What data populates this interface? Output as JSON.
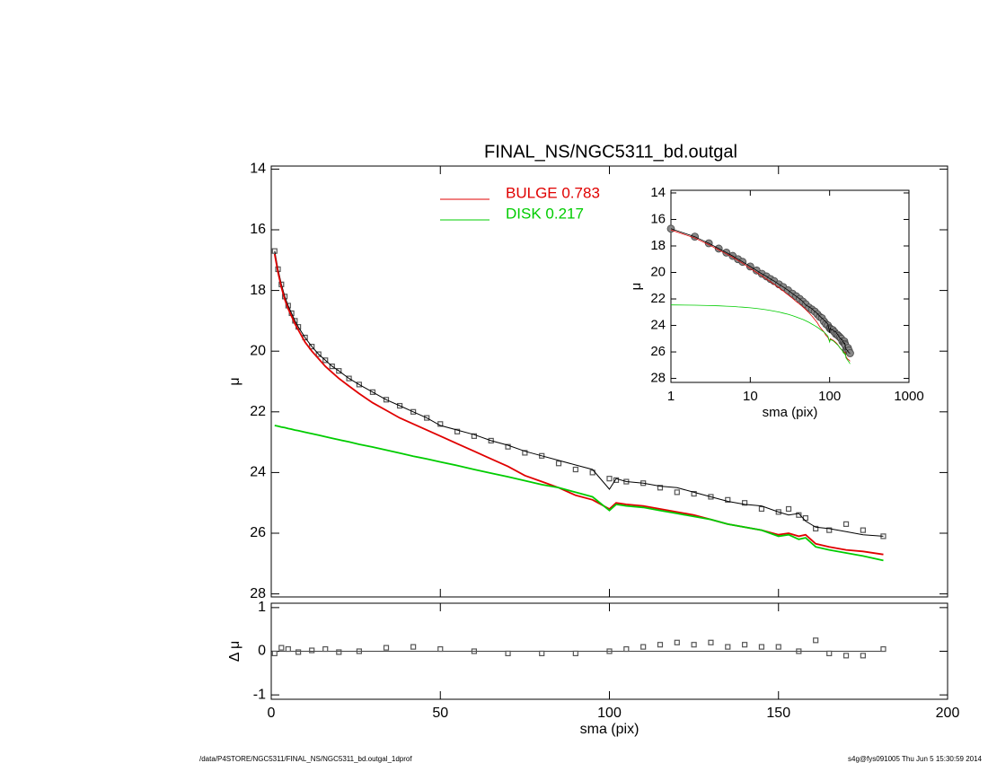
{
  "chart_data": [
    {
      "type": "line",
      "title": "FINAL_NS/NGC5311_bd.outgal",
      "ylabel": "μ",
      "ylim": [
        13.9,
        28.1
      ],
      "yticks": [
        14,
        16,
        18,
        20,
        22,
        24,
        26,
        28
      ],
      "yinvert": true,
      "x": [
        1,
        2,
        3,
        4,
        5,
        6,
        7,
        8,
        10,
        12,
        14,
        16,
        18,
        20,
        23,
        26,
        30,
        34,
        38,
        42,
        46,
        50,
        55,
        60,
        65,
        70,
        75,
        80,
        85,
        90,
        95,
        100,
        102,
        105,
        110,
        115,
        120,
        125,
        130,
        135,
        140,
        145,
        150,
        153,
        156,
        158,
        161,
        165,
        170,
        175,
        181
      ],
      "series": [
        {
          "color": "#555555",
          "mode": "markers",
          "values": [
            16.7,
            17.3,
            17.8,
            18.2,
            18.5,
            18.75,
            19.0,
            19.2,
            19.55,
            19.85,
            20.1,
            20.3,
            20.5,
            20.65,
            20.9,
            21.1,
            21.35,
            21.6,
            21.8,
            22.0,
            22.2,
            22.4,
            22.65,
            22.8,
            22.95,
            23.15,
            23.35,
            23.45,
            23.7,
            23.9,
            24.0,
            24.2,
            24.25,
            24.3,
            24.35,
            24.5,
            24.65,
            24.7,
            24.8,
            24.9,
            25.0,
            25.2,
            25.3,
            25.2,
            25.4,
            25.5,
            25.85,
            25.9,
            25.7,
            25.9,
            26.1
          ]
        },
        {
          "color": "#000000",
          "mode": "line",
          "values": [
            16.7,
            17.3,
            17.8,
            18.2,
            18.5,
            18.75,
            19.0,
            19.2,
            19.55,
            19.85,
            20.1,
            20.3,
            20.5,
            20.65,
            20.9,
            21.1,
            21.35,
            21.6,
            21.8,
            22.0,
            22.2,
            22.45,
            22.6,
            22.75,
            22.95,
            23.1,
            23.3,
            23.45,
            23.6,
            23.75,
            23.9,
            24.55,
            24.2,
            24.3,
            24.35,
            24.45,
            24.5,
            24.65,
            24.8,
            24.95,
            25.05,
            25.1,
            25.3,
            25.4,
            25.35,
            25.6,
            25.8,
            25.85,
            25.95,
            26.05,
            26.1
          ]
        },
        {
          "name": "BULGE  0.783",
          "color": "#e00000",
          "mode": "line",
          "values": [
            16.8,
            17.4,
            17.9,
            18.3,
            18.6,
            18.85,
            19.1,
            19.3,
            19.7,
            20.0,
            20.25,
            20.5,
            20.7,
            20.9,
            21.15,
            21.4,
            21.7,
            21.95,
            22.2,
            22.4,
            22.6,
            22.8,
            23.05,
            23.3,
            23.55,
            23.8,
            24.1,
            24.3,
            24.5,
            24.75,
            24.9,
            25.2,
            25.0,
            25.05,
            25.1,
            25.2,
            25.3,
            25.4,
            25.55,
            25.7,
            25.8,
            25.9,
            26.05,
            26.0,
            26.1,
            26.05,
            26.35,
            26.45,
            26.55,
            26.6,
            26.7
          ]
        },
        {
          "name": "DISK  0.217",
          "color": "#00cc00",
          "mode": "line",
          "values": [
            22.45,
            22.47,
            22.5,
            22.52,
            22.55,
            22.57,
            22.6,
            22.62,
            22.67,
            22.72,
            22.77,
            22.82,
            22.87,
            22.92,
            22.99,
            23.07,
            23.16,
            23.26,
            23.36,
            23.46,
            23.55,
            23.65,
            23.77,
            23.9,
            24.02,
            24.14,
            24.27,
            24.4,
            24.5,
            24.65,
            24.8,
            25.25,
            25.05,
            25.1,
            25.15,
            25.25,
            25.35,
            25.45,
            25.55,
            25.7,
            25.8,
            25.9,
            26.1,
            26.05,
            26.2,
            26.15,
            26.45,
            26.55,
            26.65,
            26.75,
            26.9
          ]
        }
      ]
    },
    {
      "type": "scatter",
      "ylabel": "Δ μ",
      "xlabel": "sma (pix)",
      "xlim": [
        0,
        200
      ],
      "xticks": [
        0,
        50,
        100,
        150,
        200
      ],
      "ylim": [
        -1.1,
        1.1
      ],
      "yticks": [
        -1,
        0,
        1
      ],
      "x": [
        1,
        3,
        5,
        8,
        12,
        16,
        20,
        26,
        34,
        42,
        50,
        60,
        70,
        80,
        90,
        100,
        105,
        110,
        115,
        120,
        125,
        130,
        135,
        140,
        145,
        150,
        156,
        161,
        165,
        170,
        175,
        181
      ],
      "values": [
        -0.05,
        0.08,
        0.05,
        -0.02,
        0.02,
        0.05,
        -0.02,
        0.0,
        0.08,
        0.1,
        0.05,
        0.0,
        -0.05,
        -0.05,
        -0.05,
        0.0,
        0.05,
        0.1,
        0.15,
        0.2,
        0.15,
        0.2,
        0.1,
        0.15,
        0.1,
        0.1,
        0.0,
        0.25,
        -0.05,
        -0.1,
        -0.1,
        0.05
      ],
      "zero_line": {
        "x": [
          1,
          181
        ],
        "values": [
          0,
          0
        ]
      }
    },
    {
      "type": "line",
      "xlabel": "sma (pix)",
      "ylabel": "μ",
      "log_x": true,
      "xlim": [
        1,
        1000
      ],
      "xticks": [
        1,
        10,
        100,
        1000
      ],
      "ylim": [
        13.8,
        28.3
      ],
      "yticks": [
        14,
        16,
        18,
        20,
        22,
        24,
        26,
        28
      ],
      "yinvert": true
    }
  ],
  "footer": {
    "left": "/data/P4STORE/NGC5311/FINAL_NS/NGC5311_bd.outgal_1dprof",
    "right": "s4g@fys091005  Thu Jun  5 15:30:59 2014"
  }
}
